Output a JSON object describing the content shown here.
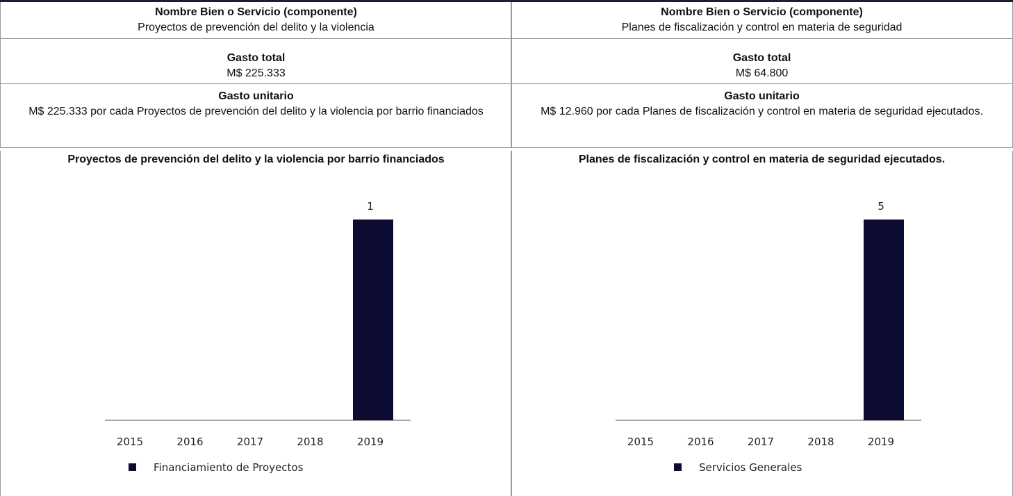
{
  "columns": [
    {
      "name_label": "Nombre Bien o Servicio (componente)",
      "name": "Proyectos de prevención del delito y la violencia",
      "total_label": "Gasto total",
      "total": "M$ 225.333",
      "unit_label": "Gasto unitario",
      "unit": "M$ 225.333 por cada Proyectos de prevención del delito y la violencia por barrio financiados",
      "chart": {
        "type": "bar",
        "title": "Proyectos de prevención del delito y la violencia por barrio financiados",
        "categories": [
          "2015",
          "2016",
          "2017",
          "2018",
          "2019"
        ],
        "series": [
          {
            "name": "Financiamiento de Proyectos",
            "color": "#0c0c33",
            "values": [
              null,
              null,
              null,
              null,
              1
            ]
          }
        ]
      }
    },
    {
      "name_label": "Nombre Bien o Servicio (componente)",
      "name": "Planes de fiscalización y control en materia de seguridad",
      "total_label": "Gasto total",
      "total": "M$ 64.800",
      "unit_label": "Gasto unitario",
      "unit": "M$ 12.960 por cada Planes de fiscalización y control en materia de seguridad ejecutados.",
      "chart": {
        "type": "bar",
        "title": "Planes de fiscalización y control en materia de seguridad ejecutados.",
        "categories": [
          "2015",
          "2016",
          "2017",
          "2018",
          "2019"
        ],
        "series": [
          {
            "name": "Servicios Generales",
            "color": "#0c0c33",
            "values": [
              null,
              null,
              null,
              null,
              5
            ]
          }
        ]
      }
    }
  ]
}
